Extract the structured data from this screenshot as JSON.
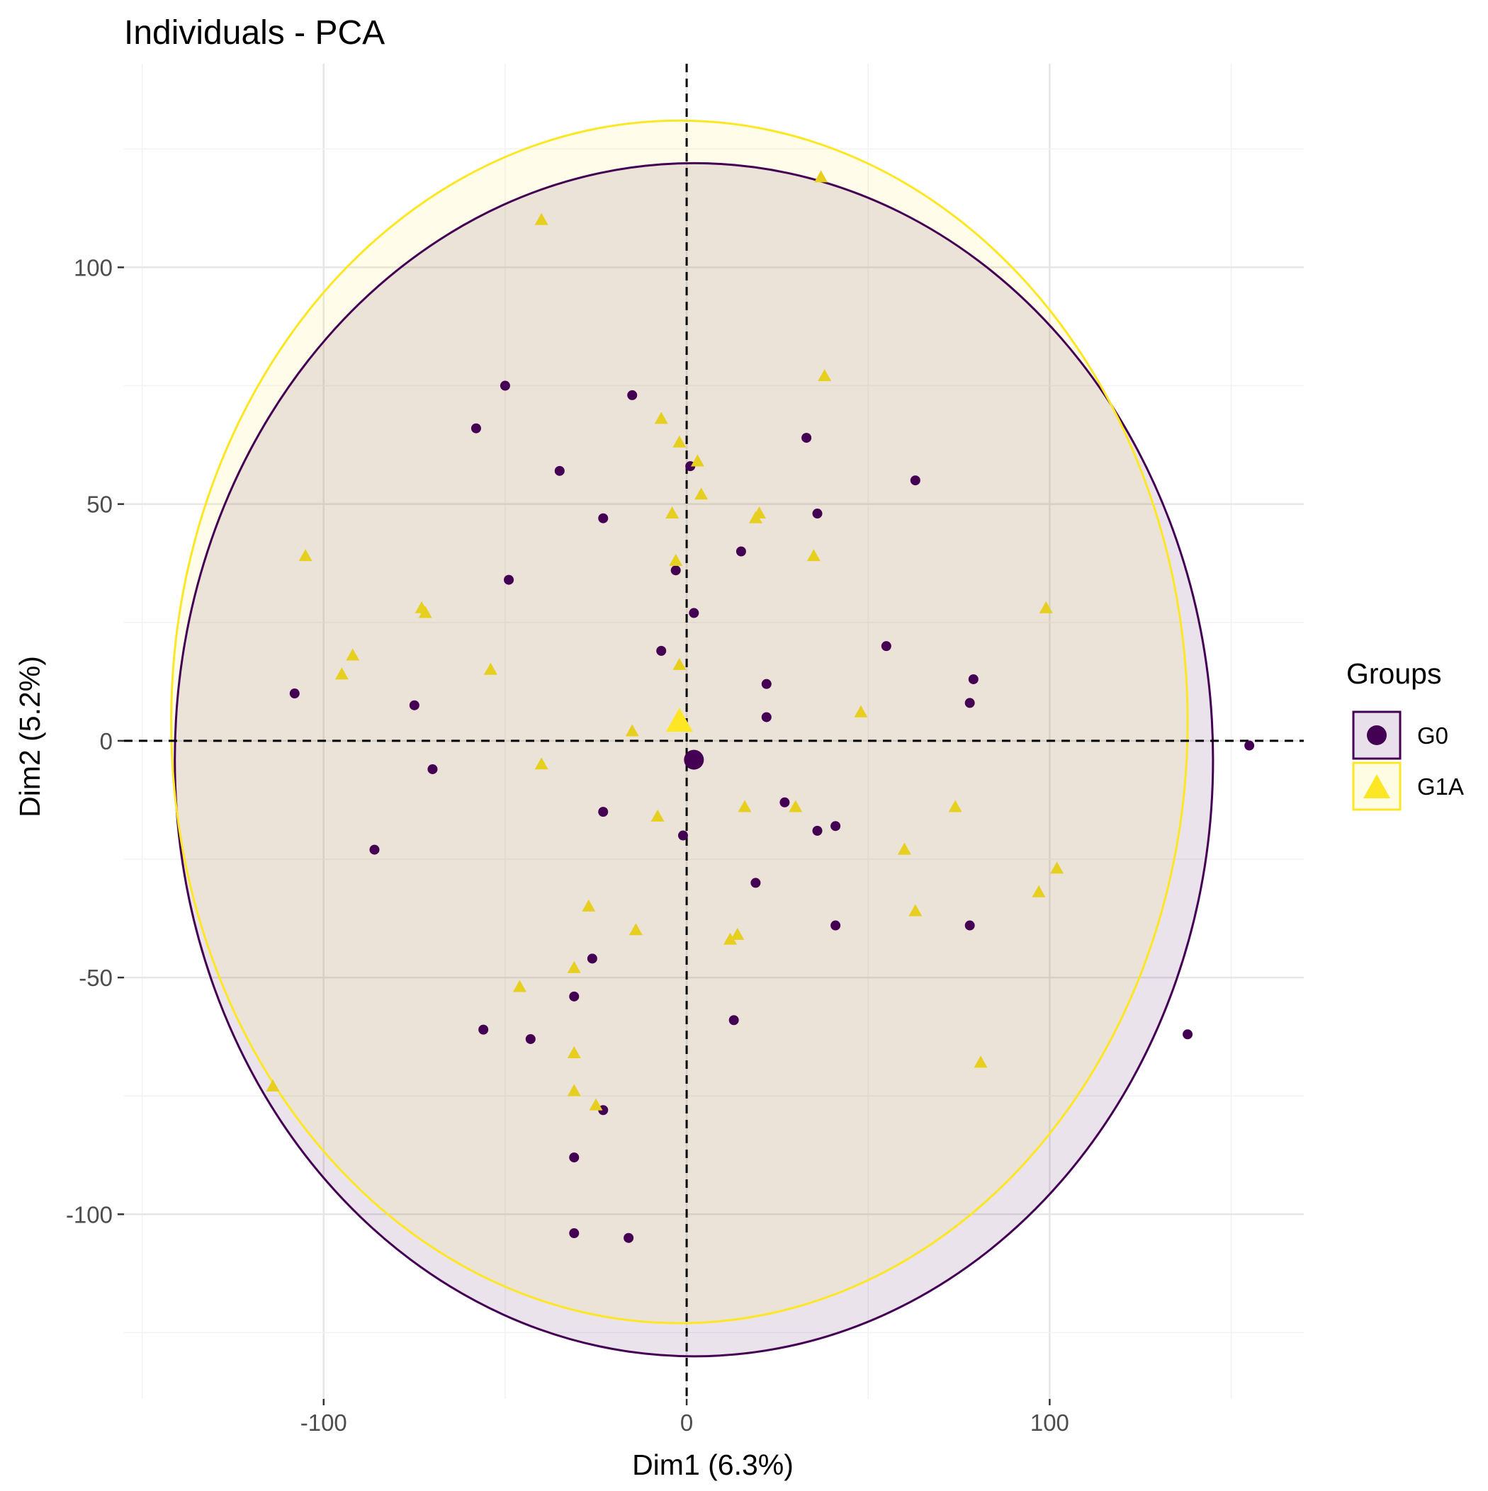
{
  "chart_data": {
    "type": "scatter",
    "title": "Individuals - PCA",
    "xlabel": "Dim1 (6.3%)",
    "ylabel": "Dim2 (5.2%)",
    "xlim": [
      -155,
      170
    ],
    "ylim": [
      -139,
      143
    ],
    "x_ticks": [
      -100,
      0,
      100
    ],
    "y_ticks": [
      -100,
      -50,
      0,
      50,
      100
    ],
    "x_tick_labels": [
      "-100",
      "0",
      "100"
    ],
    "y_tick_labels": [
      "-100",
      "-50",
      "0",
      "50",
      "100"
    ],
    "grid": true,
    "legend": {
      "title": "Groups",
      "position": "right"
    },
    "colors": {
      "G0": "#440154",
      "G1A": "#fde725",
      "G1A_points": "#e6cf1f"
    },
    "series": [
      {
        "name": "G0",
        "marker": "circle",
        "points": [
          [
            -108,
            10
          ],
          [
            -75,
            7.5
          ],
          [
            -70,
            -6
          ],
          [
            -86,
            -23
          ],
          [
            -58,
            66
          ],
          [
            -50,
            75
          ],
          [
            -35,
            57
          ],
          [
            -49,
            34
          ],
          [
            -23,
            47
          ],
          [
            -15,
            73
          ],
          [
            -7,
            19
          ],
          [
            -3,
            36
          ],
          [
            1,
            58
          ],
          [
            2,
            27
          ],
          [
            -1,
            -20
          ],
          [
            -23,
            -15
          ],
          [
            -26,
            -46
          ],
          [
            -31,
            -54
          ],
          [
            -56,
            -61
          ],
          [
            -43,
            -63
          ],
          [
            -23,
            -78
          ],
          [
            -31,
            -88
          ],
          [
            -31,
            -104
          ],
          [
            -16,
            -105
          ],
          [
            13,
            -59
          ],
          [
            19,
            -30
          ],
          [
            15,
            40
          ],
          [
            22,
            12
          ],
          [
            22,
            5
          ],
          [
            27,
            -13
          ],
          [
            33,
            64
          ],
          [
            36,
            48
          ],
          [
            36,
            -19
          ],
          [
            41,
            -18
          ],
          [
            41,
            -39
          ],
          [
            55,
            20
          ],
          [
            63,
            55
          ],
          [
            78,
            8
          ],
          [
            79,
            13
          ],
          [
            78,
            -39
          ],
          [
            138,
            -62
          ],
          [
            155,
            -1
          ]
        ],
        "centroid": [
          2,
          -4
        ],
        "ellipse": {
          "center": [
            2,
            -4
          ],
          "rx": 143,
          "ry": 126
        }
      },
      {
        "name": "G1A",
        "marker": "triangle",
        "points": [
          [
            -105,
            39
          ],
          [
            -92,
            18
          ],
          [
            -95,
            14
          ],
          [
            -73,
            28
          ],
          [
            -72,
            27
          ],
          [
            -54,
            15
          ],
          [
            -40,
            -5
          ],
          [
            -40,
            110
          ],
          [
            -15,
            2
          ],
          [
            -7,
            68
          ],
          [
            -2,
            63
          ],
          [
            -4,
            48
          ],
          [
            -3,
            38
          ],
          [
            -2,
            16
          ],
          [
            3,
            59
          ],
          [
            4,
            52
          ],
          [
            19,
            47
          ],
          [
            20,
            48
          ],
          [
            35,
            39
          ],
          [
            37,
            119
          ],
          [
            38,
            77
          ],
          [
            48,
            6
          ],
          [
            -8,
            -16
          ],
          [
            16,
            -14
          ],
          [
            30,
            -14
          ],
          [
            -27,
            -35
          ],
          [
            -14,
            -40
          ],
          [
            12,
            -42
          ],
          [
            14,
            -41
          ],
          [
            -31,
            -48
          ],
          [
            -46,
            -52
          ],
          [
            -31,
            -66
          ],
          [
            -31,
            -74
          ],
          [
            -25,
            -77
          ],
          [
            -114,
            -73
          ],
          [
            60,
            -23
          ],
          [
            63,
            -36
          ],
          [
            74,
            -14
          ],
          [
            81,
            -68
          ],
          [
            97,
            -32
          ],
          [
            102,
            -27
          ],
          [
            99,
            28
          ]
        ],
        "centroid": [
          -2,
          4
        ],
        "ellipse": {
          "center": [
            -2,
            4
          ],
          "rx": 140,
          "ry": 127
        }
      }
    ]
  }
}
